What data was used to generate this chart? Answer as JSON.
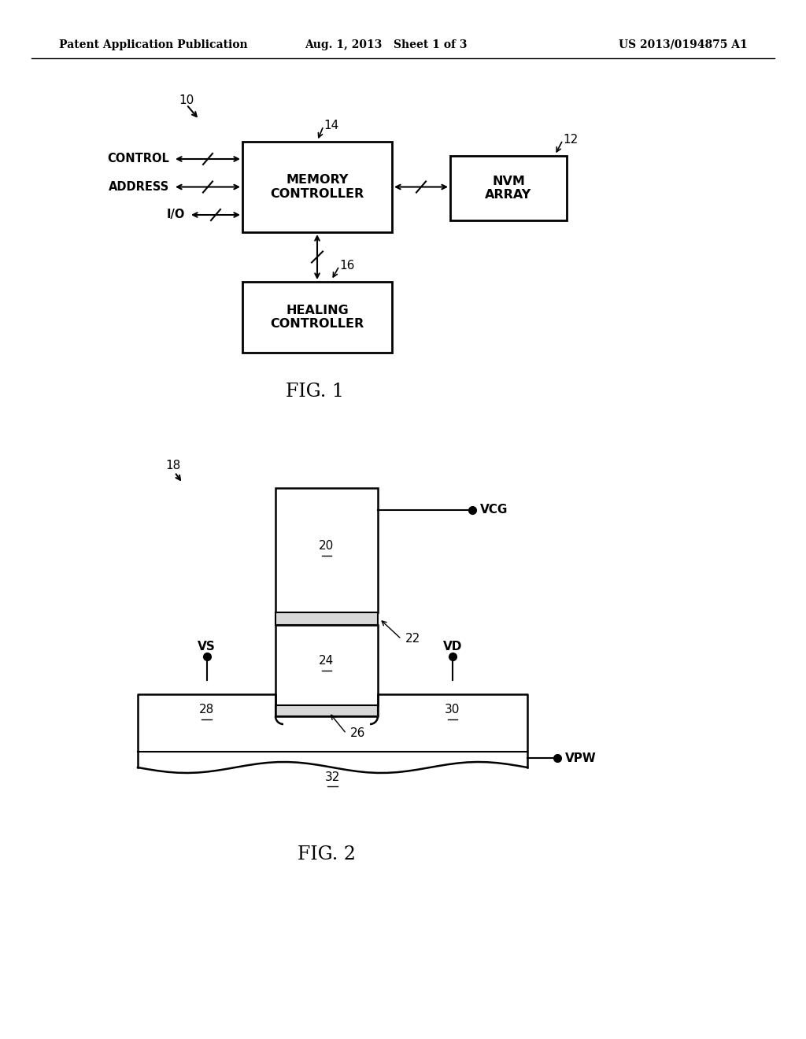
{
  "bg_color": "#ffffff",
  "header_left": "Patent Application Publication",
  "header_center": "Aug. 1, 2013   Sheet 1 of 3",
  "header_right": "US 2013/0194875 A1",
  "fig1_label": "FIG. 1",
  "fig2_label": "FIG. 2",
  "fig1_ref": "10",
  "fig2_ref": "18",
  "mc_label": "MEMORY\nCONTROLLER",
  "mc_ref": "14",
  "nvm_label": "NVM\nARRAY",
  "nvm_ref": "12",
  "hc_label": "HEALING\nCONTROLLER",
  "hc_ref": "16",
  "control_label": "CONTROL",
  "address_label": "ADDRESS",
  "io_label": "I/O",
  "node_20": "20",
  "node_22": "22",
  "node_24": "24",
  "node_26": "26",
  "node_28": "28",
  "node_30": "30",
  "node_32": "32",
  "vcg_label": "VCG",
  "vs_label": "VS",
  "vd_label": "VD",
  "vpw_label": "VPW"
}
